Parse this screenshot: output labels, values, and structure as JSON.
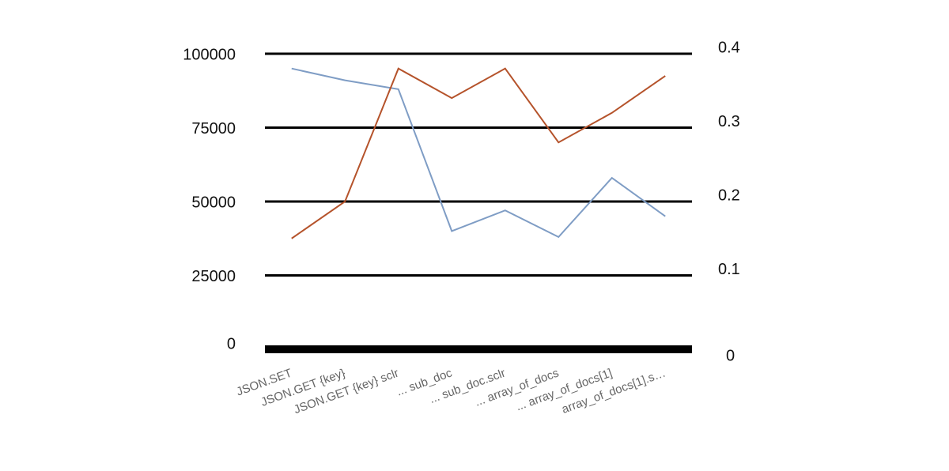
{
  "chart_data": {
    "type": "line",
    "categories": [
      "JSON.SET",
      "JSON.GET {key}",
      "JSON.GET {key} sclr",
      "... sub_doc",
      "... sub_doc.sclr",
      "... array_of_docs",
      "... array_of_docs[1]",
      "array_of_docs[1].s…"
    ],
    "series": [
      {
        "color": "#7f9dc5",
        "values": [
          95000,
          91000,
          88000,
          40000,
          47000,
          38000,
          58000,
          45000
        ]
      },
      {
        "color": "#b5532b",
        "axis": "y2",
        "values": [
          0.15,
          0.2,
          0.38,
          0.34,
          0.38,
          0.28,
          0.32,
          0.37
        ]
      }
    ],
    "ylim": [
      0,
      100000
    ],
    "yticks": [
      0,
      25000,
      50000,
      75000,
      100000
    ],
    "y2lim": [
      0,
      0.4
    ],
    "y2ticks": [
      0,
      0.1,
      0.2,
      0.3,
      0.4
    ],
    "grid": true
  }
}
